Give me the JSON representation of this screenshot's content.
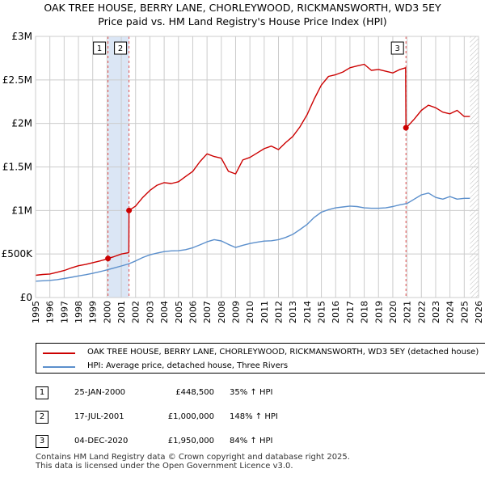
{
  "title_line1": "OAK TREE HOUSE, BERRY LANE, CHORLEYWOOD, RICKMANSWORTH, WD3 5EY",
  "title_line2": "Price paid vs. HM Land Registry's House Price Index (HPI)",
  "colors": {
    "property": "#cc0000",
    "hpi": "#5b8fcc",
    "grid": "#cccccc",
    "shade": "#dbe6f5",
    "marker_line": "#e05050"
  },
  "chart_data": {
    "type": "line",
    "title": "OAK TREE HOUSE, BERRY LANE, CHORLEYWOOD, RICKMANSWORTH, WD3 5EY — Price paid vs. HM Land Registry's House Price Index (HPI)",
    "xlim": [
      1995,
      2026
    ],
    "ylim": [
      0,
      3000000
    ],
    "y_ticks": [
      {
        "value": 0,
        "label": "£0"
      },
      {
        "value": 500000,
        "label": "£500K"
      },
      {
        "value": 1000000,
        "label": "£1M"
      },
      {
        "value": 1500000,
        "label": "£1.5M"
      },
      {
        "value": 2000000,
        "label": "£2M"
      },
      {
        "value": 2500000,
        "label": "£2.5M"
      },
      {
        "value": 3000000,
        "label": "£3M"
      }
    ],
    "x_ticks": [
      "1995",
      "1996",
      "1997",
      "1998",
      "1999",
      "2000",
      "2001",
      "2002",
      "2003",
      "2004",
      "2005",
      "2006",
      "2007",
      "2008",
      "2009",
      "2010",
      "2011",
      "2012",
      "2013",
      "2014",
      "2015",
      "2016",
      "2017",
      "2018",
      "2019",
      "2020",
      "2021",
      "2022",
      "2023",
      "2024",
      "2025",
      "2026"
    ],
    "shaded_range": [
      2000.07,
      2001.54
    ],
    "data_end": 2025.4,
    "series": [
      {
        "name": "OAK TREE HOUSE, BERRY LANE, CHORLEYWOOD, RICKMANSWORTH, WD3 5EY (detached house)",
        "x": [
          1995,
          1995.5,
          1996,
          1996.5,
          1997,
          1997.5,
          1998,
          1998.5,
          1999,
          1999.5,
          2000.06,
          2000.07,
          2000.5,
          2001,
          2001.5,
          2001.53,
          2001.54,
          2002,
          2002.5,
          2003,
          2003.5,
          2004,
          2004.5,
          2005,
          2005.5,
          2006,
          2006.5,
          2007,
          2007.5,
          2008,
          2008.5,
          2009,
          2009.5,
          2010,
          2010.5,
          2011,
          2011.5,
          2012,
          2012.5,
          2013,
          2013.5,
          2014,
          2014.5,
          2015,
          2015.5,
          2016,
          2016.5,
          2017,
          2017.5,
          2018,
          2018.5,
          2019,
          2019.5,
          2020,
          2020.5,
          2020.9,
          2020.92,
          2021,
          2021.5,
          2022,
          2022.5,
          2023,
          2023.5,
          2024,
          2024.5,
          2025,
          2025.4
        ],
        "values": [
          255000,
          265000,
          270000,
          290000,
          310000,
          340000,
          365000,
          380000,
          400000,
          420000,
          445000,
          448500,
          470000,
          500000,
          515000,
          520000,
          1000000,
          1050000,
          1150000,
          1230000,
          1290000,
          1320000,
          1310000,
          1330000,
          1390000,
          1450000,
          1560000,
          1650000,
          1620000,
          1600000,
          1450000,
          1420000,
          1580000,
          1610000,
          1660000,
          1710000,
          1740000,
          1700000,
          1780000,
          1850000,
          1960000,
          2100000,
          2280000,
          2440000,
          2540000,
          2560000,
          2590000,
          2640000,
          2660000,
          2680000,
          2610000,
          2620000,
          2600000,
          2580000,
          2620000,
          2640000,
          1950000,
          1960000,
          2050000,
          2150000,
          2210000,
          2180000,
          2130000,
          2110000,
          2150000,
          2080000,
          2080000
        ]
      },
      {
        "name": "HPI: Average price, detached house, Three Rivers",
        "x": [
          1995,
          1995.5,
          1996,
          1996.5,
          1997,
          1997.5,
          1998,
          1998.5,
          1999,
          1999.5,
          2000,
          2000.5,
          2001,
          2001.5,
          2002,
          2002.5,
          2003,
          2003.5,
          2004,
          2004.5,
          2005,
          2005.5,
          2006,
          2006.5,
          2007,
          2007.5,
          2008,
          2008.5,
          2009,
          2009.5,
          2010,
          2010.5,
          2011,
          2011.5,
          2012,
          2012.5,
          2013,
          2013.5,
          2014,
          2014.5,
          2015,
          2015.5,
          2016,
          2016.5,
          2017,
          2017.5,
          2018,
          2018.5,
          2019,
          2019.5,
          2020,
          2020.5,
          2021,
          2021.5,
          2022,
          2022.5,
          2023,
          2023.5,
          2024,
          2024.5,
          2025,
          2025.4
        ],
        "values": [
          188000,
          192000,
          197000,
          205000,
          218000,
          232000,
          248000,
          262000,
          278000,
          296000,
          318000,
          340000,
          362000,
          385000,
          420000,
          460000,
          490000,
          510000,
          528000,
          536000,
          538000,
          550000,
          572000,
          605000,
          640000,
          665000,
          650000,
          610000,
          575000,
          600000,
          620000,
          635000,
          648000,
          652000,
          665000,
          690000,
          725000,
          780000,
          840000,
          920000,
          980000,
          1010000,
          1030000,
          1040000,
          1050000,
          1045000,
          1030000,
          1025000,
          1025000,
          1030000,
          1045000,
          1065000,
          1080000,
          1130000,
          1180000,
          1200000,
          1150000,
          1130000,
          1160000,
          1130000,
          1140000,
          1140000
        ]
      }
    ],
    "sales": [
      {
        "id": "1",
        "x": 2000.07,
        "value": 448500
      },
      {
        "id": "2",
        "x": 2001.54,
        "value": 1000000
      },
      {
        "id": "3",
        "x": 2020.92,
        "value": 1950000
      }
    ]
  },
  "legend": {
    "property_label": "OAK TREE HOUSE, BERRY LANE, CHORLEYWOOD, RICKMANSWORTH, WD3 5EY (detached house)",
    "hpi_label": "HPI: Average price, detached house, Three Rivers"
  },
  "transactions": [
    {
      "num": "1",
      "date": "25-JAN-2000",
      "price": "£448,500",
      "hpi": "35% ↑ HPI"
    },
    {
      "num": "2",
      "date": "17-JUL-2001",
      "price": "£1,000,000",
      "hpi": "148% ↑ HPI"
    },
    {
      "num": "3",
      "date": "04-DEC-2020",
      "price": "£1,950,000",
      "hpi": "84% ↑ HPI"
    }
  ],
  "footer_line1": "Contains HM Land Registry data © Crown copyright and database right 2025.",
  "footer_line2": "This data is licensed under the Open Government Licence v3.0."
}
